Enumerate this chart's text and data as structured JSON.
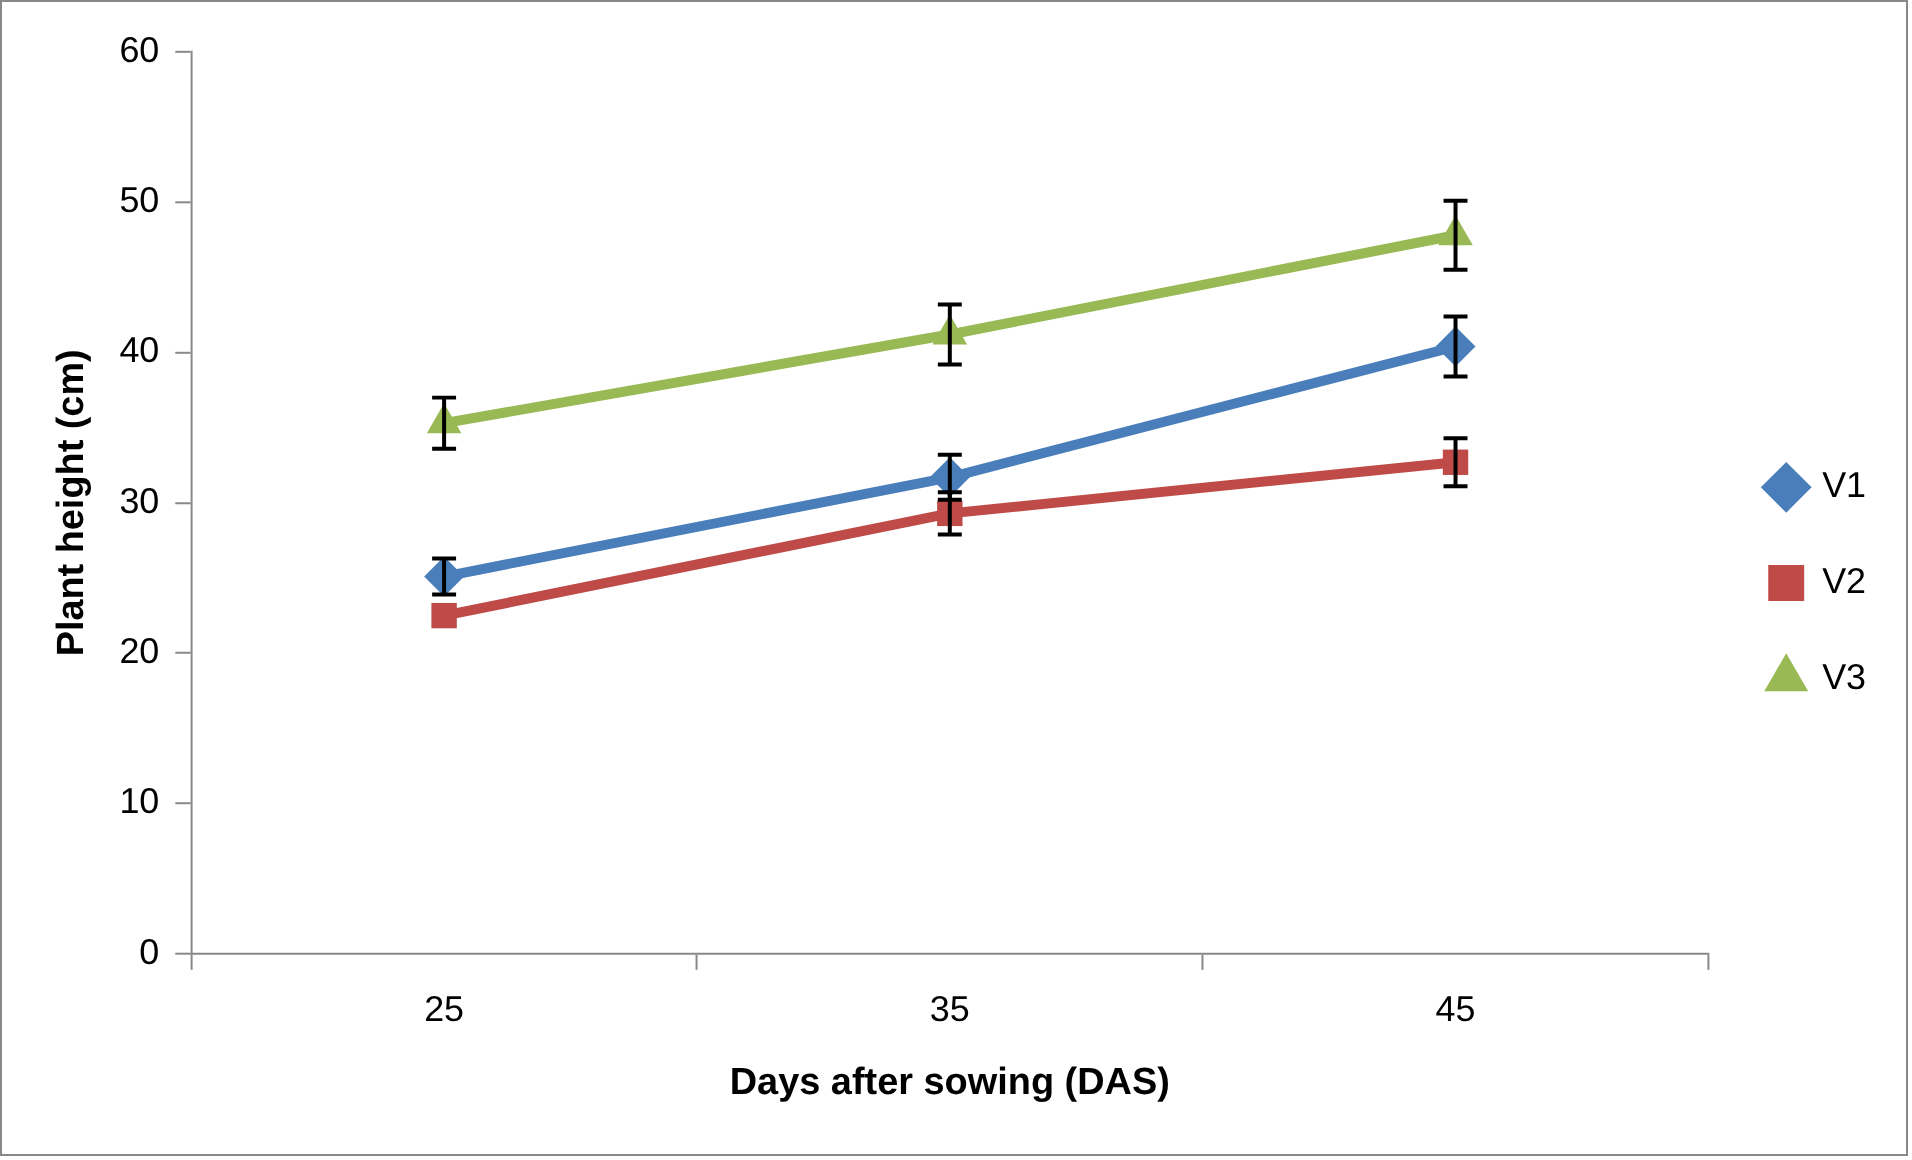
{
  "chart_data": {
    "type": "line",
    "xlabel": "Days after sowing (DAS)",
    "ylabel": "Plant height (cm)",
    "categories": [
      "25",
      "35",
      "45"
    ],
    "series": [
      {
        "name": "V1",
        "color": "#4a7ebb",
        "marker": "diamond",
        "values": [
          25.1,
          31.7,
          40.4
        ],
        "errors": [
          1.2,
          1.5,
          2
        ]
      },
      {
        "name": "V2",
        "color": "#be4b48",
        "marker": "square",
        "values": [
          22.5,
          29.3,
          32.7
        ],
        "errors": [
          null,
          1.4,
          1.6
        ]
      },
      {
        "name": "V3",
        "color": "#98b954",
        "marker": "triangle",
        "values": [
          35.3,
          41.2,
          47.8
        ],
        "errors": [
          1.7,
          2,
          2.3
        ]
      }
    ],
    "ylim": [
      0,
      60
    ],
    "yticks": [
      0,
      10,
      20,
      30,
      40,
      50,
      60
    ],
    "grid": false,
    "legend": "right",
    "line_style": "solid"
  }
}
